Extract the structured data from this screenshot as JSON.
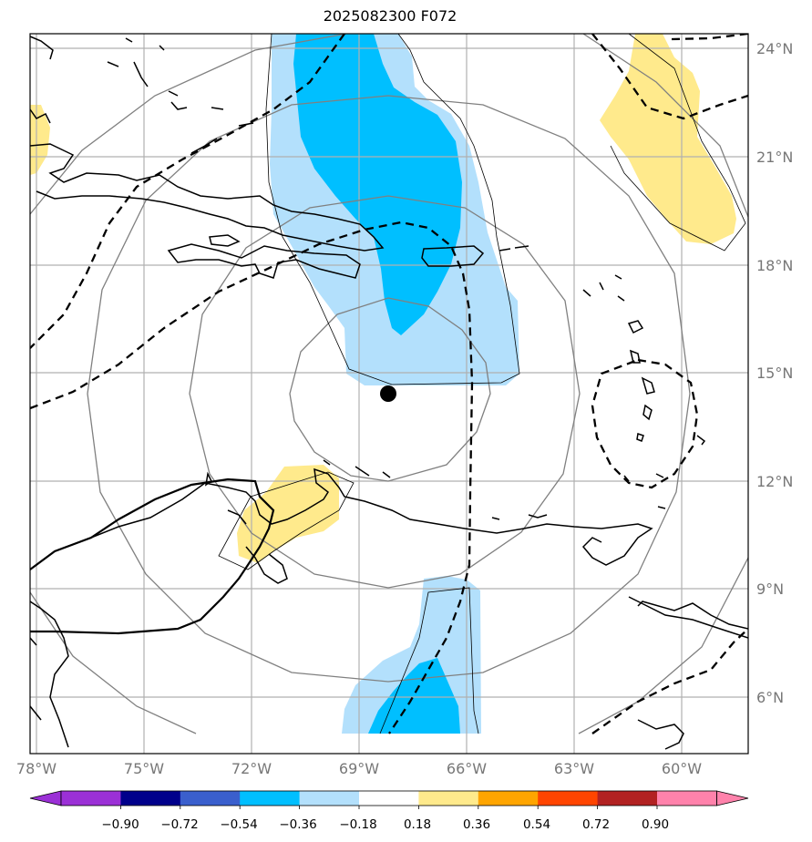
{
  "title": "2025082300 F072",
  "map": {
    "lat_labels": [
      "24°N",
      "21°N",
      "18°N",
      "15°N",
      "12°N",
      "9°N",
      "6°N"
    ],
    "lon_labels": [
      "78°W",
      "75°W",
      "72°W",
      "69°W",
      "66°W",
      "63°W",
      "60°W"
    ],
    "colors": {
      "light_blue": "#b3e0fc",
      "deep_sky_blue": "#00bfff",
      "light_yellow": "#ffea8c",
      "grid": "#b0b0b0",
      "range_rings": "#808080",
      "coastline": "#000000",
      "center_marker": "#000000"
    }
  },
  "colorbar": {
    "tick_labels": [
      "−0.90",
      "−0.72",
      "−0.54",
      "−0.36",
      "−0.18",
      "0.18",
      "0.36",
      "0.54",
      "0.72",
      "0.90"
    ],
    "colors": [
      "#9b30d6",
      "#00008b",
      "#3a5fcd",
      "#00bfff",
      "#b3e0fc",
      "#ffffff",
      "#ffea8c",
      "#ffa500",
      "#ff4500",
      "#b22222",
      "#ff82ab"
    ]
  }
}
